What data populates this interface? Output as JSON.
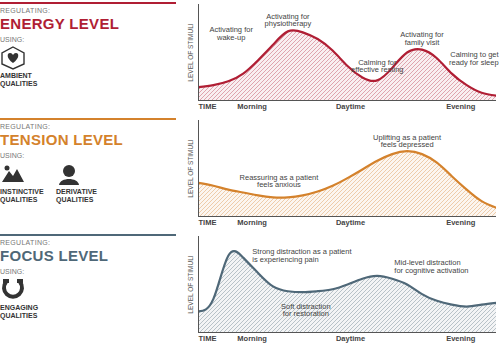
{
  "chart_data": [
    {
      "type": "area",
      "subtitle": "REGULATING:",
      "title": "ENERGY LEVEL",
      "using_label": "USING:",
      "qualities": [
        "AMBIENT QUALITIES"
      ],
      "color": "#b01e34",
      "xlabel": "TIME",
      "ylabel": "LEVEL OF STIMULI",
      "xlim": [
        0,
        100
      ],
      "ylim": [
        0,
        100
      ],
      "xticks": [
        {
          "value": 18,
          "label": "Morning"
        },
        {
          "value": 51,
          "label": "Daytime"
        },
        {
          "value": 88,
          "label": "Evening"
        }
      ],
      "yticks": [],
      "tick_labels": "x",
      "x": [
        0,
        5,
        10,
        15,
        20,
        25,
        30,
        35,
        40,
        45,
        50,
        55,
        60,
        65,
        70,
        75,
        80,
        85,
        90,
        95,
        100
      ],
      "values": [
        14,
        16,
        20,
        28,
        42,
        58,
        72,
        71,
        64,
        52,
        36,
        24,
        21,
        34,
        50,
        53,
        44,
        28,
        16,
        8,
        5
      ],
      "annotations": [
        {
          "text": "Activating for\nwake-up",
          "x": 15,
          "y": 28
        },
        {
          "text": "Activating for\nphysiotherapy",
          "x": 30,
          "y": 72
        },
        {
          "text": "Calming for\neffective resting",
          "x": 60,
          "y": 21
        },
        {
          "text": "Activating for\nfamily visit",
          "x": 75,
          "y": 53
        },
        {
          "text": "Calming to get\nready for sleep",
          "x": 95,
          "y": 8
        }
      ]
    },
    {
      "type": "area",
      "subtitle": "REGULATING:",
      "title": "TENSION LEVEL",
      "using_label": "USING:",
      "qualities": [
        "INSTINCTIVE QUALITIES",
        "DERIVATIVE QUALITIES"
      ],
      "color": "#d4822c",
      "xlabel": "TIME",
      "ylabel": "LEVEL OF STIMULI",
      "xlim": [
        0,
        100
      ],
      "ylim": [
        0,
        100
      ],
      "xticks": [
        {
          "value": 18,
          "label": "Morning"
        },
        {
          "value": 51,
          "label": "Daytime"
        },
        {
          "value": 88,
          "label": "Evening"
        }
      ],
      "yticks": [],
      "tick_labels": "x",
      "x": [
        0,
        5,
        10,
        15,
        20,
        25,
        30,
        35,
        40,
        45,
        50,
        55,
        60,
        65,
        70,
        75,
        80,
        85,
        90,
        95,
        100
      ],
      "values": [
        35,
        32,
        28,
        25,
        22,
        20,
        20,
        22,
        26,
        32,
        40,
        49,
        58,
        65,
        68,
        65,
        56,
        42,
        28,
        16,
        9
      ],
      "annotations": [
        {
          "text": "Reassuring as a patient\nfeels anxious",
          "x": 27,
          "y": 20
        },
        {
          "text": "Uplifting as a patient\nfeels depressed",
          "x": 70,
          "y": 68
        }
      ]
    },
    {
      "type": "area",
      "subtitle": "REGULATING:",
      "title": "FOCUS LEVEL",
      "using_label": "USING:",
      "qualities": [
        "ENGAGING QUALITIES"
      ],
      "color": "#4f6878",
      "xlabel": "TIME",
      "ylabel": "LEVEL OF STIMULI",
      "xlim": [
        0,
        100
      ],
      "ylim": [
        0,
        100
      ],
      "xticks": [
        {
          "value": 18,
          "label": "Morning"
        },
        {
          "value": 51,
          "label": "Daytime"
        },
        {
          "value": 88,
          "label": "Evening"
        }
      ],
      "yticks": [],
      "tick_labels": "x",
      "x": [
        0,
        5,
        10,
        15,
        20,
        25,
        30,
        35,
        40,
        45,
        50,
        55,
        60,
        65,
        70,
        75,
        80,
        85,
        90,
        95,
        100
      ],
      "values": [
        22,
        35,
        80,
        78,
        62,
        48,
        43,
        42,
        43,
        45,
        50,
        56,
        59,
        56,
        50,
        40,
        33,
        29,
        27,
        29,
        31
      ],
      "annotations": [
        {
          "text": "Strong distraction as a patient\nis experiencing pain",
          "x": 10,
          "y": 80
        },
        {
          "text": "Soft distraction\nfor restoration",
          "x": 35,
          "y": 42
        },
        {
          "text": "Mid-level distraction\nfor cognitive activation",
          "x": 60,
          "y": 59
        }
      ]
    }
  ]
}
